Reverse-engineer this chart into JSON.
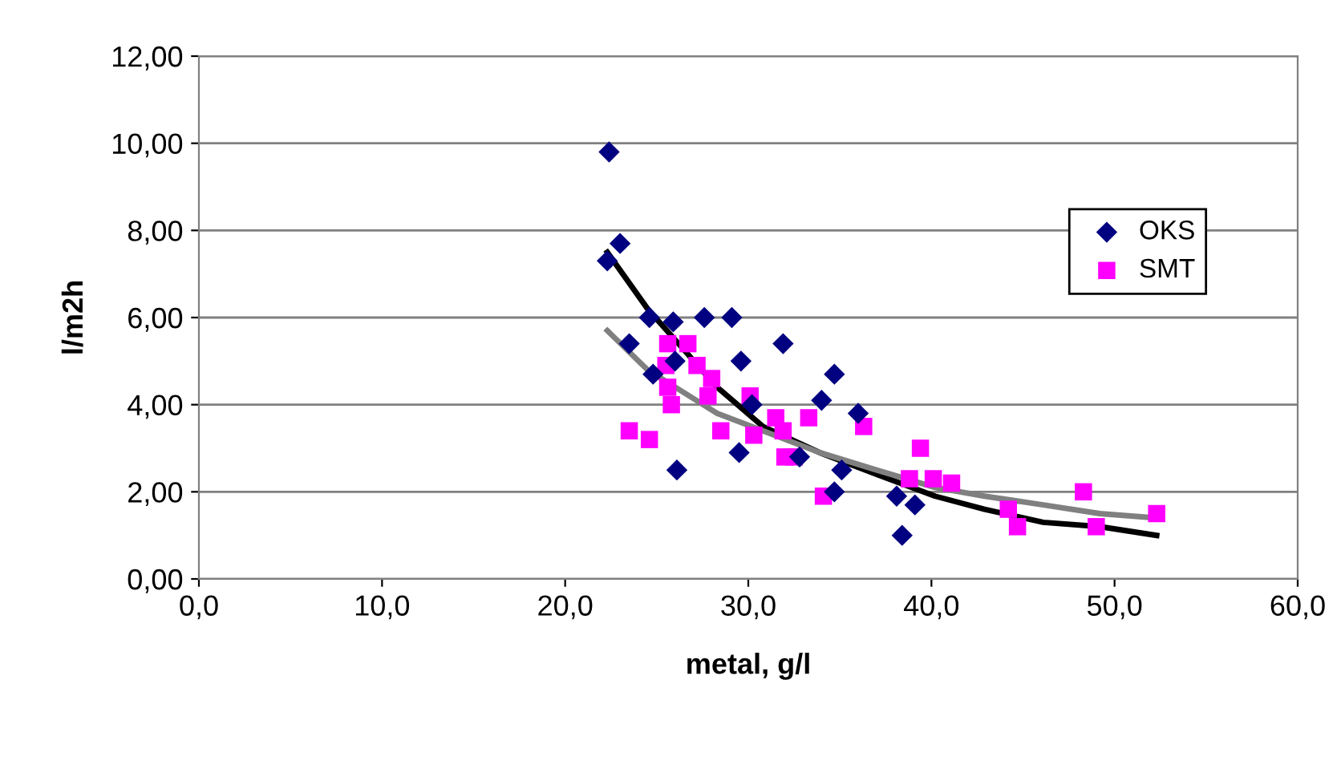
{
  "chart_data": {
    "type": "scatter",
    "xlabel": "metal, g/l",
    "ylabel": "l/m2h",
    "xlim": [
      0,
      60
    ],
    "ylim": [
      0,
      12
    ],
    "xticks": [
      {
        "value": 0,
        "label": "0,0"
      },
      {
        "value": 10,
        "label": "10,0"
      },
      {
        "value": 20,
        "label": "20,0"
      },
      {
        "value": 30,
        "label": "30,0"
      },
      {
        "value": 40,
        "label": "40,0"
      },
      {
        "value": 50,
        "label": "50,0"
      },
      {
        "value": 60,
        "label": "60,0"
      }
    ],
    "yticks": [
      {
        "value": 0,
        "label": "0,00"
      },
      {
        "value": 2,
        "label": "2,00"
      },
      {
        "value": 4,
        "label": "4,00"
      },
      {
        "value": 6,
        "label": "6,00"
      },
      {
        "value": 8,
        "label": "8,00"
      },
      {
        "value": 10,
        "label": "10,00"
      },
      {
        "value": 12,
        "label": "12,00"
      }
    ],
    "grid": "y",
    "legend": "right",
    "series": [
      {
        "name": "OKS",
        "color": "#000080",
        "marker": "diamond",
        "x": [
          22.4,
          23.0,
          22.3,
          24.6,
          25.9,
          27.6,
          29.1,
          23.5,
          26.0,
          29.6,
          31.9,
          24.8,
          34.7,
          34.0,
          36.0,
          30.2,
          29.5,
          26.1,
          32.8,
          35.1,
          34.7,
          38.1,
          39.1,
          38.4
        ],
        "values": [
          9.8,
          7.7,
          7.3,
          6.0,
          5.9,
          6.0,
          6.0,
          5.4,
          5.0,
          5.0,
          5.4,
          4.7,
          4.7,
          4.1,
          3.8,
          4.0,
          2.9,
          2.5,
          2.8,
          2.5,
          2.0,
          1.9,
          1.7,
          1.0
        ]
      },
      {
        "name": "SMT",
        "color": "#ff00ff",
        "marker": "square",
        "x": [
          25.6,
          26.7,
          25.5,
          27.2,
          28.0,
          25.6,
          25.8,
          27.8,
          30.1,
          31.5,
          33.3,
          36.3,
          31.9,
          28.5,
          30.3,
          23.5,
          24.6,
          32.0,
          32.5,
          34.1,
          39.4,
          38.8,
          40.1,
          41.1,
          44.2,
          44.7,
          48.3,
          49.0,
          52.3
        ],
        "values": [
          5.4,
          5.4,
          4.9,
          4.9,
          4.6,
          4.4,
          4.0,
          4.2,
          4.2,
          3.7,
          3.7,
          3.5,
          3.4,
          3.4,
          3.3,
          3.4,
          3.2,
          2.8,
          2.8,
          1.9,
          3.0,
          2.3,
          2.3,
          2.2,
          1.6,
          1.2,
          2.0,
          1.2,
          1.5
        ]
      },
      {
        "type": "line",
        "color": "#000000",
        "x": [
          22.3,
          24.5,
          26.4,
          28.3,
          30.8,
          33.9,
          37.0,
          40.2,
          42.9,
          46.1,
          49.2,
          52.3
        ],
        "values": [
          7.5,
          6.2,
          5.3,
          4.4,
          3.5,
          2.9,
          2.4,
          1.9,
          1.6,
          1.3,
          1.2,
          1.0
        ]
      },
      {
        "type": "line",
        "color": "#808080",
        "x": [
          22.3,
          24.5,
          26.4,
          28.3,
          30.8,
          33.9,
          37.0,
          40.2,
          42.9,
          46.1,
          49.2,
          52.3
        ],
        "values": [
          5.7,
          4.8,
          4.3,
          3.8,
          3.4,
          2.9,
          2.5,
          2.1,
          1.9,
          1.7,
          1.5,
          1.4
        ]
      }
    ]
  }
}
